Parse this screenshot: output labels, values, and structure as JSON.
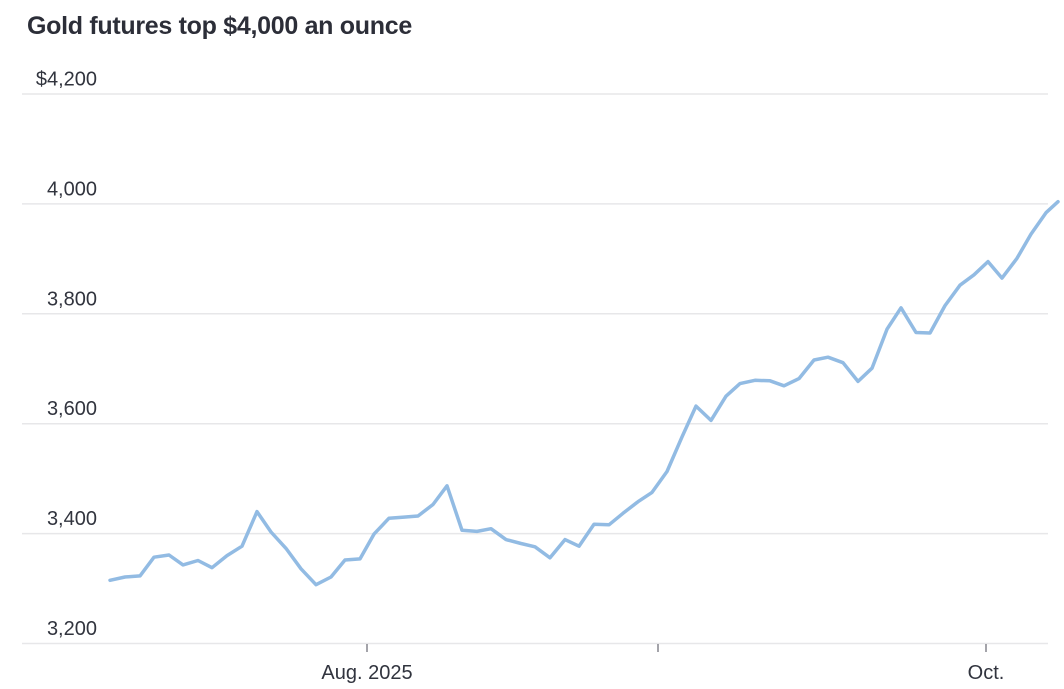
{
  "title": "Gold futures top $4,000 an ounce",
  "colors": {
    "line": "#92bbe3",
    "gridline": "#e7e7e9",
    "tick": "#85858d",
    "title_text": "#2c2e38",
    "axis_label_text": "#31343e",
    "background": "#ffffff"
  },
  "chart_data": {
    "type": "line",
    "title": "Gold futures top $4,000 an ounce",
    "grid": "horizontal-only",
    "legend": "none",
    "y_axis": {
      "min": 3200,
      "max": 4200,
      "tick_step": 200,
      "ticks": [
        {
          "value": 4200,
          "label": "$4,200"
        },
        {
          "value": 4000,
          "label": "4,000"
        },
        {
          "value": 3800,
          "label": "3,800"
        },
        {
          "value": 3600,
          "label": "3,600"
        },
        {
          "value": 3400,
          "label": "3,400"
        },
        {
          "value": 3200,
          "label": "3,200"
        }
      ]
    },
    "x_axis": {
      "ticks": [
        {
          "label": "Aug. 2025",
          "x": 367
        },
        {
          "label": "",
          "x": 658
        },
        {
          "label": "Oct.",
          "x": 986
        }
      ]
    },
    "series": [
      {
        "name": "gold-futures-price",
        "points": [
          [
            110,
            3315
          ],
          [
            125,
            3321
          ],
          [
            140,
            3323
          ],
          [
            154,
            3357
          ],
          [
            169,
            3361
          ],
          [
            183,
            3343
          ],
          [
            198,
            3351
          ],
          [
            212,
            3338
          ],
          [
            227,
            3360
          ],
          [
            242,
            3377
          ],
          [
            257,
            3440
          ],
          [
            271,
            3403
          ],
          [
            286,
            3373
          ],
          [
            301,
            3336
          ],
          [
            316,
            3307
          ],
          [
            331,
            3321
          ],
          [
            345,
            3352
          ],
          [
            360,
            3354
          ],
          [
            374,
            3399
          ],
          [
            389,
            3428
          ],
          [
            404,
            3430
          ],
          [
            418,
            3432
          ],
          [
            433,
            3453
          ],
          [
            447,
            3487
          ],
          [
            462,
            3406
          ],
          [
            477,
            3404
          ],
          [
            491,
            3409
          ],
          [
            506,
            3389
          ],
          [
            521,
            3382
          ],
          [
            535,
            3376
          ],
          [
            550,
            3356
          ],
          [
            565,
            3389
          ],
          [
            579,
            3377
          ],
          [
            594,
            3417
          ],
          [
            609,
            3416
          ],
          [
            623,
            3437
          ],
          [
            638,
            3458
          ],
          [
            652,
            3475
          ],
          [
            667,
            3513
          ],
          [
            682,
            3576
          ],
          [
            696,
            3632
          ],
          [
            711,
            3606
          ],
          [
            726,
            3650
          ],
          [
            740,
            3673
          ],
          [
            755,
            3679
          ],
          [
            770,
            3678
          ],
          [
            784,
            3669
          ],
          [
            799,
            3682
          ],
          [
            814,
            3716
          ],
          [
            828,
            3721
          ],
          [
            843,
            3711
          ],
          [
            858,
            3677
          ],
          [
            872,
            3701
          ],
          [
            887,
            3772
          ],
          [
            901,
            3811
          ],
          [
            916,
            3766
          ],
          [
            930,
            3765
          ],
          [
            945,
            3815
          ],
          [
            960,
            3852
          ],
          [
            974,
            3871
          ],
          [
            988,
            3895
          ],
          [
            1002,
            3865
          ],
          [
            1017,
            3901
          ],
          [
            1031,
            3945
          ],
          [
            1046,
            3984
          ],
          [
            1058,
            4004
          ]
        ]
      }
    ]
  }
}
